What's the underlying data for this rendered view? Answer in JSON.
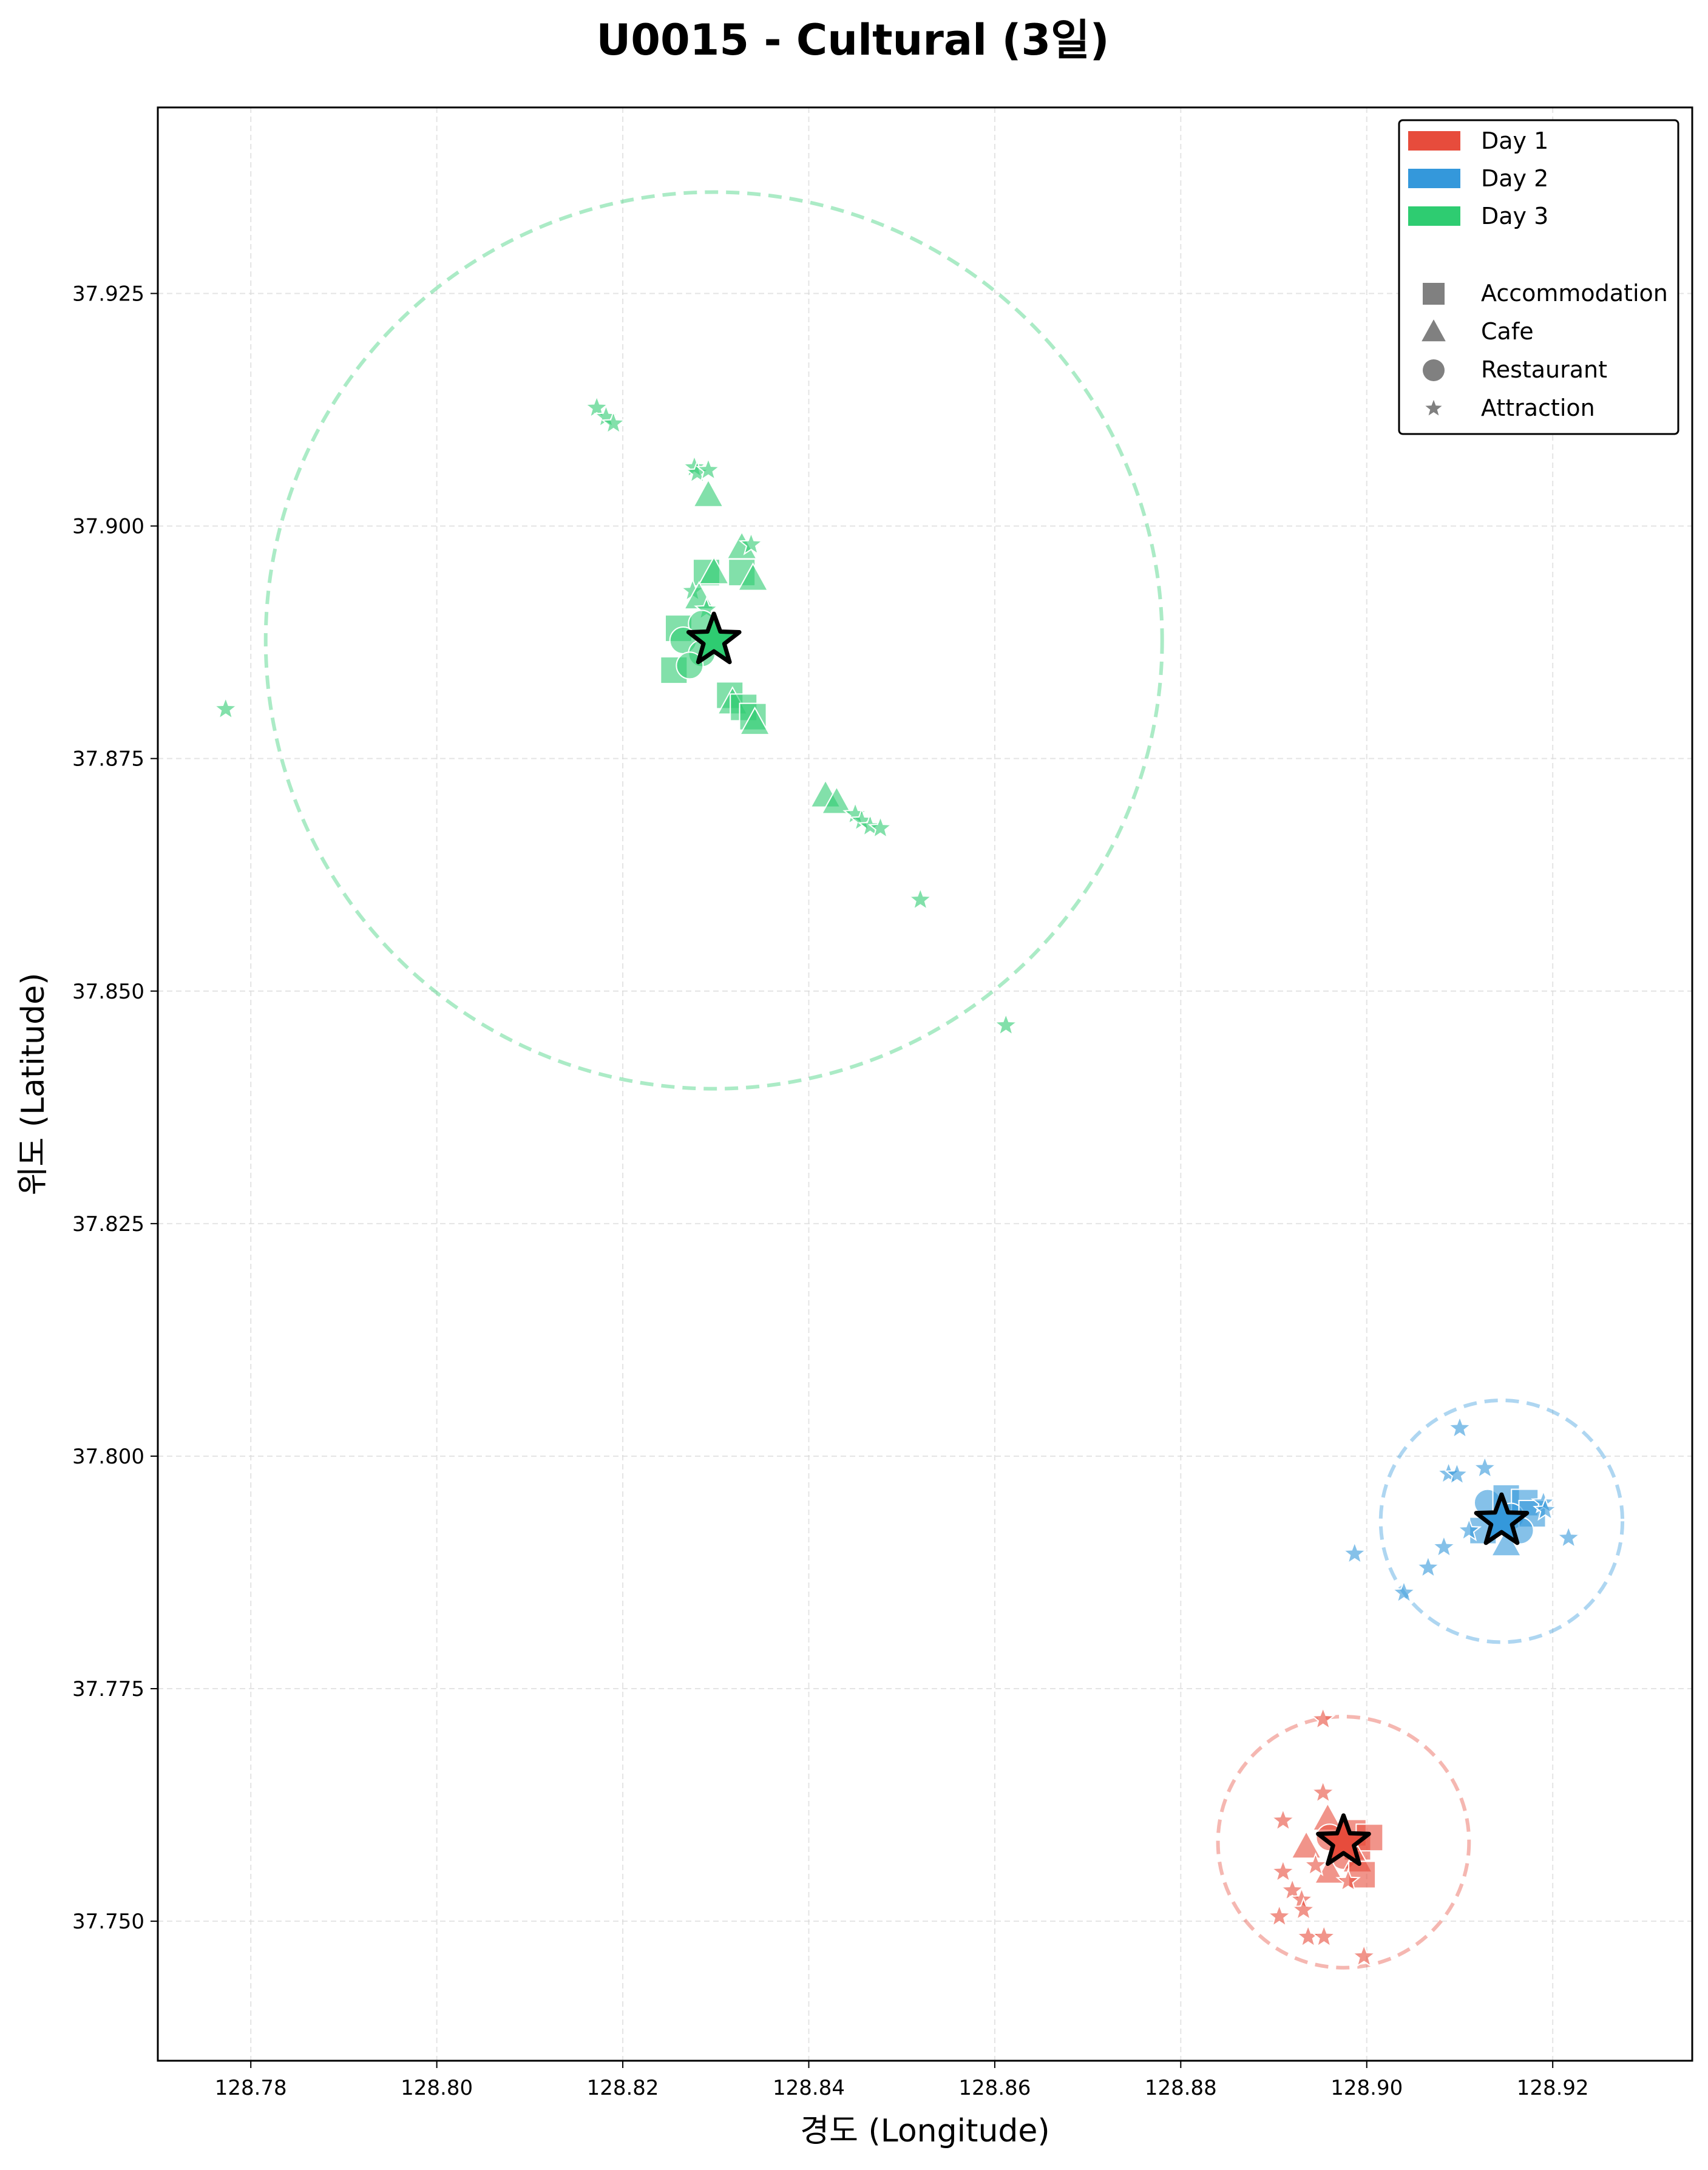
{
  "chart_data": {
    "type": "scatter",
    "title": "U0015 - Cultural (3일)",
    "xlabel": "경도 (Longitude)",
    "ylabel": "위도 (Latitude)",
    "xlim": [
      128.77,
      128.935
    ],
    "ylim": [
      37.735,
      37.945
    ],
    "xticks": [
      "128.78",
      "128.80",
      "128.82",
      "128.84",
      "128.86",
      "128.88",
      "128.90",
      "128.92"
    ],
    "yticks": [
      "37.750",
      "37.775",
      "37.800",
      "37.825",
      "37.850",
      "37.875",
      "37.900",
      "37.925"
    ],
    "grid": true,
    "legend_position": "top-right",
    "legend": {
      "days": [
        "Day 1",
        "Day 2",
        "Day 3"
      ],
      "types": [
        "Accommodation",
        "Cafe",
        "Restaurant",
        "Attraction"
      ]
    },
    "colors": {
      "Day 1": "#e74c3c",
      "Day 2": "#3498db",
      "Day 3": "#2ecc71",
      "neutral": "#808080"
    },
    "series": [
      {
        "name": "Day 1",
        "center": [
          128.8975,
          37.7585
        ],
        "radius": 0.0135,
        "points": [
          {
            "x": 128.8953,
            "y": 37.7717,
            "type": "Attraction"
          },
          {
            "x": 128.8953,
            "y": 37.7638,
            "type": "Attraction"
          },
          {
            "x": 128.8958,
            "y": 37.761,
            "type": "Cafe"
          },
          {
            "x": 128.891,
            "y": 37.7608,
            "type": "Attraction"
          },
          {
            "x": 128.8935,
            "y": 37.758,
            "type": "Cafe"
          },
          {
            "x": 128.896,
            "y": 37.759,
            "type": "Restaurant"
          },
          {
            "x": 128.8985,
            "y": 37.7595,
            "type": "Accommodation"
          },
          {
            "x": 128.899,
            "y": 37.758,
            "type": "Accommodation"
          },
          {
            "x": 128.9003,
            "y": 37.759,
            "type": "Accommodation"
          },
          {
            "x": 128.8975,
            "y": 37.757,
            "type": "Restaurant"
          },
          {
            "x": 128.899,
            "y": 37.7565,
            "type": "Cafe"
          },
          {
            "x": 128.896,
            "y": 37.7553,
            "type": "Cafe"
          },
          {
            "x": 128.8995,
            "y": 37.755,
            "type": "Accommodation"
          },
          {
            "x": 128.8945,
            "y": 37.756,
            "type": "Attraction"
          },
          {
            "x": 128.891,
            "y": 37.7553,
            "type": "Attraction"
          },
          {
            "x": 128.892,
            "y": 37.7533,
            "type": "Attraction"
          },
          {
            "x": 128.893,
            "y": 37.7523,
            "type": "Attraction"
          },
          {
            "x": 128.898,
            "y": 37.7543,
            "type": "Attraction"
          },
          {
            "x": 128.8932,
            "y": 37.7512,
            "type": "Attraction"
          },
          {
            "x": 128.8906,
            "y": 37.7505,
            "type": "Attraction"
          },
          {
            "x": 128.8937,
            "y": 37.7483,
            "type": "Attraction"
          },
          {
            "x": 128.8954,
            "y": 37.7483,
            "type": "Attraction"
          },
          {
            "x": 128.8997,
            "y": 37.7462,
            "type": "Attraction"
          }
        ]
      },
      {
        "name": "Day 2",
        "center": [
          128.9145,
          37.793
        ],
        "radius": 0.013,
        "points": [
          {
            "x": 128.91,
            "y": 37.803,
            "type": "Attraction"
          },
          {
            "x": 128.9127,
            "y": 37.7987,
            "type": "Attraction"
          },
          {
            "x": 128.9088,
            "y": 37.7981,
            "type": "Attraction"
          },
          {
            "x": 128.9097,
            "y": 37.798,
            "type": "Attraction"
          },
          {
            "x": 128.913,
            "y": 37.795,
            "type": "Restaurant"
          },
          {
            "x": 128.915,
            "y": 37.7955,
            "type": "Accommodation"
          },
          {
            "x": 128.917,
            "y": 37.795,
            "type": "Accommodation"
          },
          {
            "x": 128.9155,
            "y": 37.7935,
            "type": "Restaurant"
          },
          {
            "x": 128.9178,
            "y": 37.7938,
            "type": "Accommodation"
          },
          {
            "x": 128.919,
            "y": 37.795,
            "type": "Attraction"
          },
          {
            "x": 128.9192,
            "y": 37.7942,
            "type": "Attraction"
          },
          {
            "x": 128.9125,
            "y": 37.792,
            "type": "Accommodation"
          },
          {
            "x": 128.915,
            "y": 37.7905,
            "type": "Cafe"
          },
          {
            "x": 128.9165,
            "y": 37.792,
            "type": "Restaurant"
          },
          {
            "x": 128.911,
            "y": 37.792,
            "type": "Attraction"
          },
          {
            "x": 128.9217,
            "y": 37.7912,
            "type": "Attraction"
          },
          {
            "x": 128.9083,
            "y": 37.7902,
            "type": "Attraction"
          },
          {
            "x": 128.8987,
            "y": 37.7895,
            "type": "Attraction"
          },
          {
            "x": 128.9066,
            "y": 37.788,
            "type": "Attraction"
          },
          {
            "x": 128.904,
            "y": 37.7853,
            "type": "Attraction"
          }
        ]
      },
      {
        "name": "Day 3",
        "center": [
          128.8298,
          37.8877
        ],
        "radius": 0.0482,
        "points": [
          {
            "x": 128.8172,
            "y": 37.9127,
            "type": "Attraction"
          },
          {
            "x": 128.8182,
            "y": 37.9117,
            "type": "Attraction"
          },
          {
            "x": 128.819,
            "y": 37.911,
            "type": "Attraction"
          },
          {
            "x": 128.8277,
            "y": 37.9063,
            "type": "Attraction"
          },
          {
            "x": 128.828,
            "y": 37.9057,
            "type": "Attraction"
          },
          {
            "x": 128.8292,
            "y": 37.906,
            "type": "Attraction"
          },
          {
            "x": 128.8292,
            "y": 37.9033,
            "type": "Cafe"
          },
          {
            "x": 128.8328,
            "y": 37.8977,
            "type": "Cafe"
          },
          {
            "x": 128.8338,
            "y": 37.898,
            "type": "Attraction"
          },
          {
            "x": 128.829,
            "y": 37.895,
            "type": "Accommodation"
          },
          {
            "x": 128.8298,
            "y": 37.895,
            "type": "Cafe"
          },
          {
            "x": 128.8328,
            "y": 37.895,
            "type": "Accommodation"
          },
          {
            "x": 128.834,
            "y": 37.8943,
            "type": "Cafe"
          },
          {
            "x": 128.8275,
            "y": 37.893,
            "type": "Attraction"
          },
          {
            "x": 128.8282,
            "y": 37.8923,
            "type": "Cafe"
          },
          {
            "x": 128.829,
            "y": 37.891,
            "type": "Attraction"
          },
          {
            "x": 128.826,
            "y": 37.889,
            "type": "Accommodation"
          },
          {
            "x": 128.8285,
            "y": 37.8895,
            "type": "Restaurant"
          },
          {
            "x": 128.8265,
            "y": 37.8877,
            "type": "Restaurant"
          },
          {
            "x": 128.8285,
            "y": 37.8863,
            "type": "Restaurant"
          },
          {
            "x": 128.8255,
            "y": 37.8845,
            "type": "Accommodation"
          },
          {
            "x": 128.8272,
            "y": 37.885,
            "type": "Restaurant"
          },
          {
            "x": 128.8315,
            "y": 37.8818,
            "type": "Accommodation"
          },
          {
            "x": 128.8318,
            "y": 37.881,
            "type": "Cafe"
          },
          {
            "x": 128.833,
            "y": 37.8805,
            "type": "Accommodation"
          },
          {
            "x": 128.834,
            "y": 37.8795,
            "type": "Accommodation"
          },
          {
            "x": 128.8342,
            "y": 37.8788,
            "type": "Cafe"
          },
          {
            "x": 128.7773,
            "y": 37.8803,
            "type": "Attraction"
          },
          {
            "x": 128.8418,
            "y": 37.871,
            "type": "Cafe"
          },
          {
            "x": 128.843,
            "y": 37.8703,
            "type": "Cafe"
          },
          {
            "x": 128.845,
            "y": 37.869,
            "type": "Attraction"
          },
          {
            "x": 128.8457,
            "y": 37.8683,
            "type": "Attraction"
          },
          {
            "x": 128.8466,
            "y": 37.8677,
            "type": "Attraction"
          },
          {
            "x": 128.8477,
            "y": 37.8675,
            "type": "Attraction"
          },
          {
            "x": 128.852,
            "y": 37.8598,
            "type": "Attraction"
          },
          {
            "x": 128.8612,
            "y": 37.8463,
            "type": "Attraction"
          }
        ]
      }
    ]
  }
}
